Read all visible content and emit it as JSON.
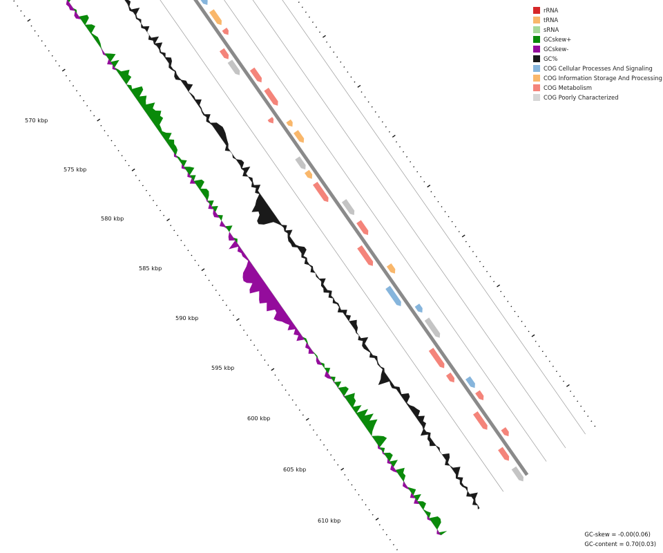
{
  "legend": {
    "items": [
      {
        "label": "rRNA",
        "color": "#d62728"
      },
      {
        "label": "tRNA",
        "color": "#f9b76b"
      },
      {
        "label": "sRNA",
        "color": "#a6d89a"
      },
      {
        "label": "GCskew+",
        "color": "#0a8a0a"
      },
      {
        "label": "GCskew-",
        "color": "#940c9c"
      },
      {
        "label": "GC%",
        "color": "#1a1a1a"
      },
      {
        "label": "COG Cellular Processes And Signaling",
        "color": "#86b5dc"
      },
      {
        "label": "COG Information Storage And Processing",
        "color": "#f9b76b"
      },
      {
        "label": "COG Metabolism",
        "color": "#f4847a"
      },
      {
        "label": "COG Poorly Characterized",
        "color": "#d6d6d6"
      }
    ]
  },
  "stats": {
    "gc_skew": "GC-skew = -0.00(0.06)",
    "gc_content": "GC-content = 0.70(0.03)"
  },
  "axis": {
    "labels": [
      "570 kbp",
      "575 kbp",
      "580 kbp",
      "585 kbp",
      "590 kbp",
      "595 kbp",
      "600 kbp",
      "605 kbp",
      "610 kbp"
    ]
  },
  "colors": {
    "backbone": "#8a8a8a",
    "ring_line": "#9a9a9a",
    "gc": "#1a1a1a",
    "skew_pos": "#0a8a0a",
    "skew_neg": "#940c9c",
    "cog_cellular": "#86b5dc",
    "cog_info": "#f9b76b",
    "cog_metab": "#f4847a",
    "cog_poor": "#c4c4c4"
  }
}
